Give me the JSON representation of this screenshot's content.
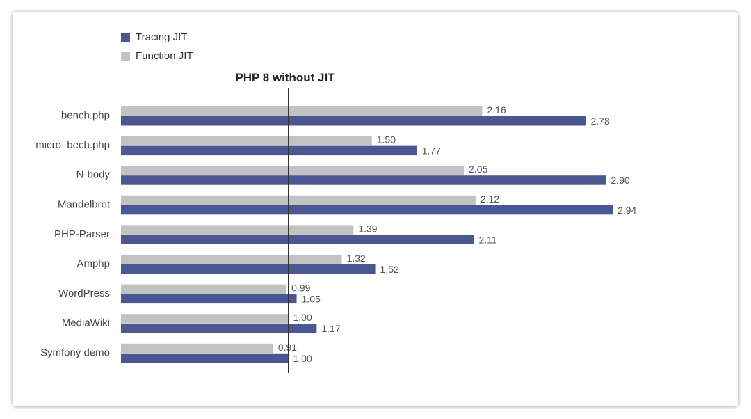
{
  "colors": {
    "tracing_jit": "#4b5791",
    "function_jit": "#c2c2c2",
    "baseline_line": "#333333",
    "label_text": "#444444",
    "value_text": "#555555"
  },
  "legend": {
    "items": [
      {
        "label": "Tracing JIT",
        "color": "#4b5791"
      },
      {
        "label": "Function JIT",
        "color": "#c2c2c2"
      }
    ]
  },
  "chart_data": {
    "type": "bar",
    "orientation": "horizontal",
    "baseline_label": "PHP 8 without JIT",
    "baseline_value": 1.0,
    "categories": [
      "bench.php",
      "micro_bech.php",
      "N-body",
      "Mandelbrot",
      "PHP-Parser",
      "Amphp",
      "WordPress",
      "MediaWiki",
      "Symfony demo"
    ],
    "series": [
      {
        "name": "Function JIT",
        "values": [
          2.16,
          1.5,
          2.05,
          2.12,
          1.39,
          1.32,
          0.99,
          1.0,
          0.91
        ]
      },
      {
        "name": "Tracing JIT",
        "values": [
          2.78,
          1.77,
          2.9,
          2.94,
          2.11,
          1.52,
          1.05,
          1.17,
          1.0
        ]
      }
    ],
    "value_labels": {
      "Function JIT": [
        "2.16",
        "1.50",
        "2.05",
        "2.12",
        "1.39",
        "1.32",
        "0.99",
        "1.00",
        "0.91"
      ],
      "Tracing JIT": [
        "2.78",
        "1.77",
        "2.90",
        "2.94",
        "2.11",
        "1.52",
        "1.05",
        "1.17",
        "1.00"
      ]
    },
    "xlim": [
      0,
      3.0
    ],
    "grid": false,
    "legend_position": "top-left"
  }
}
